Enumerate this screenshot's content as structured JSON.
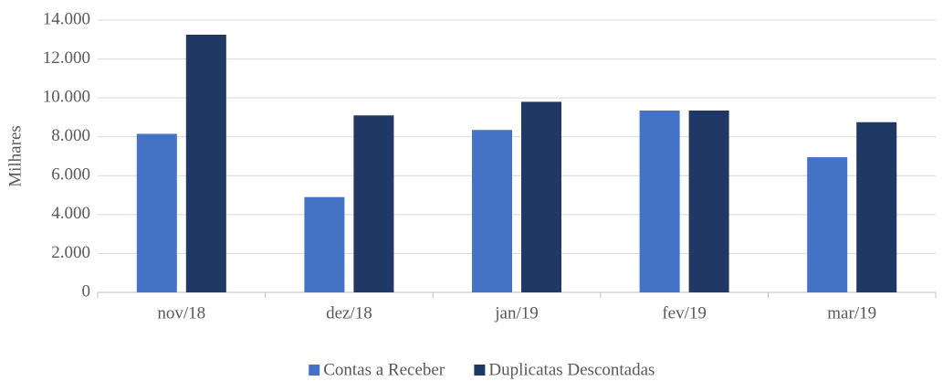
{
  "chart_data": {
    "type": "bar",
    "ylabel": "Milhares",
    "categories": [
      "nov/18",
      "dez/18",
      "jan/19",
      "fev/19",
      "mar/19"
    ],
    "series": [
      {
        "name": "Contas a Receber",
        "color": "#4472c4",
        "values": [
          8150,
          4900,
          8350,
          9350,
          6950
        ]
      },
      {
        "name": "Duplicatas Descontadas",
        "color": "#203864",
        "values": [
          13250,
          9100,
          9800,
          9350,
          8750
        ]
      }
    ],
    "ylim": [
      0,
      14000
    ],
    "yticks": [
      0,
      {
        "value": 2000,
        "label": "2.000"
      },
      {
        "value": 4000,
        "label": "4.000"
      },
      {
        "value": 6000,
        "label": "6.000"
      },
      {
        "value": 8000,
        "label": "8.000"
      },
      {
        "value": 10000,
        "label": "10.000"
      },
      {
        "value": 12000,
        "label": "12.000"
      },
      {
        "value": 14000,
        "label": "14.000"
      }
    ],
    "grid": true,
    "legend": "bottom"
  }
}
